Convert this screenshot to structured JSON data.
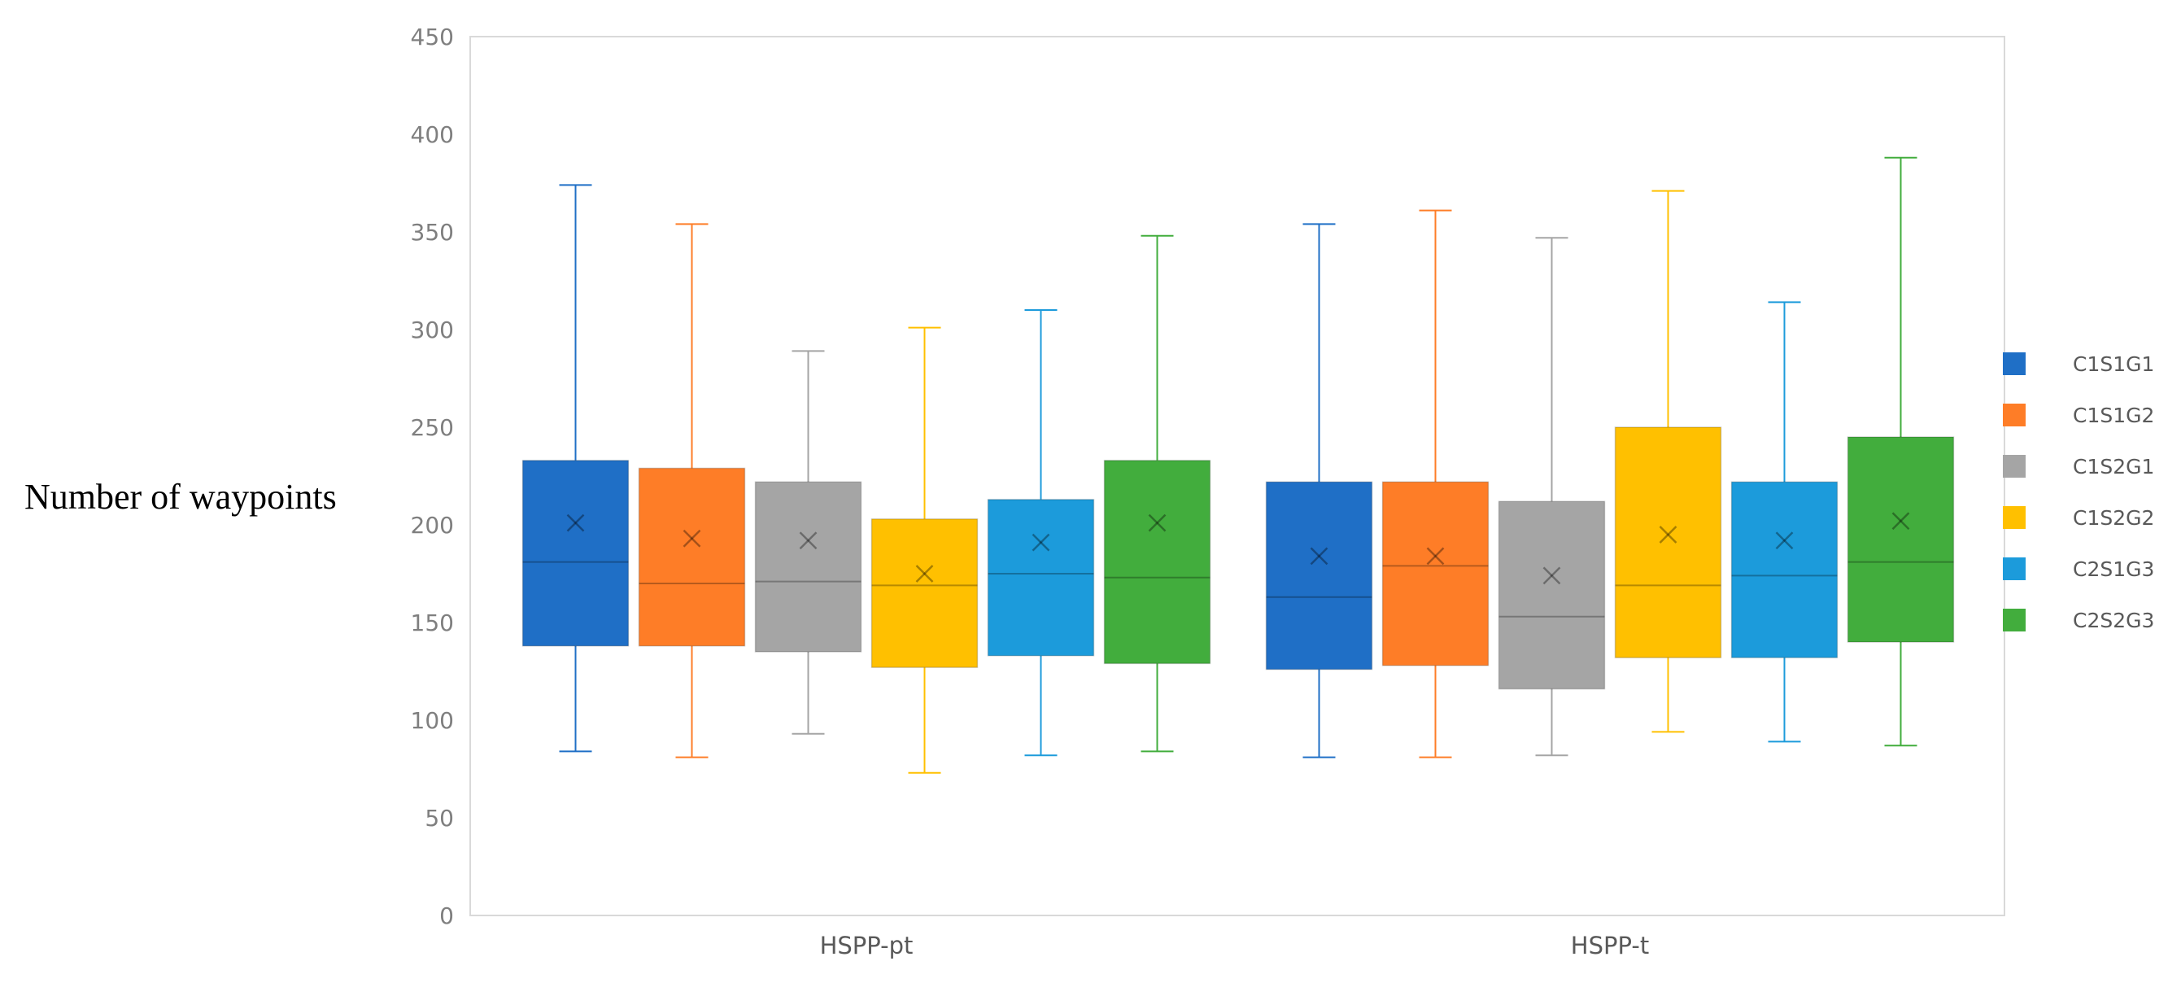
{
  "chart_data": {
    "type": "boxplot",
    "title": "",
    "xlabel": "",
    "ylabel": "Number of waypoints",
    "ylim": [
      0,
      450
    ],
    "yticks": [
      0,
      50,
      100,
      150,
      200,
      250,
      300,
      350,
      400,
      450
    ],
    "categories": [
      "HSPP-pt",
      "HSPP-t"
    ],
    "legend_position": "right",
    "grid": false,
    "series": [
      {
        "name": "C1S1G1",
        "color": "#1f6fc6",
        "boxes": [
          {
            "min": 84,
            "q1": 138,
            "median": 181,
            "q3": 233,
            "max": 374,
            "mean": 201
          },
          {
            "min": 81,
            "q1": 126,
            "median": 163,
            "q3": 222,
            "max": 354,
            "mean": 184
          }
        ]
      },
      {
        "name": "C1S1G2",
        "color": "#fe7d27",
        "boxes": [
          {
            "min": 81,
            "q1": 138,
            "median": 170,
            "q3": 229,
            "max": 354,
            "mean": 193
          },
          {
            "min": 81,
            "q1": 128,
            "median": 179,
            "q3": 222,
            "max": 361,
            "mean": 184
          }
        ]
      },
      {
        "name": "C1S2G1",
        "color": "#a5a5a5",
        "boxes": [
          {
            "min": 93,
            "q1": 135,
            "median": 171,
            "q3": 222,
            "max": 289,
            "mean": 192
          },
          {
            "min": 82,
            "q1": 116,
            "median": 153,
            "q3": 212,
            "max": 347,
            "mean": 174
          }
        ]
      },
      {
        "name": "C1S2G2",
        "color": "#ffc000",
        "boxes": [
          {
            "min": 73,
            "q1": 127,
            "median": 169,
            "q3": 203,
            "max": 301,
            "mean": 175
          },
          {
            "min": 94,
            "q1": 132,
            "median": 169,
            "q3": 250,
            "max": 371,
            "mean": 195
          }
        ]
      },
      {
        "name": "C2S1G3",
        "color": "#1c9bdb",
        "boxes": [
          {
            "min": 82,
            "q1": 133,
            "median": 175,
            "q3": 213,
            "max": 310,
            "mean": 191
          },
          {
            "min": 89,
            "q1": 132,
            "median": 174,
            "q3": 222,
            "max": 314,
            "mean": 192
          }
        ]
      },
      {
        "name": "C2S2G3",
        "color": "#42ad3d",
        "boxes": [
          {
            "min": 84,
            "q1": 129,
            "median": 173,
            "q3": 233,
            "max": 348,
            "mean": 201
          },
          {
            "min": 87,
            "q1": 140,
            "median": 181,
            "q3": 245,
            "max": 388,
            "mean": 202
          }
        ]
      }
    ]
  }
}
